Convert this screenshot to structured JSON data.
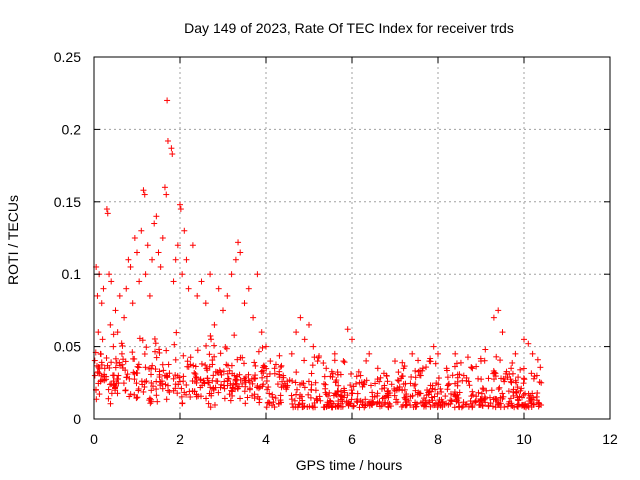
{
  "chart_data": {
    "type": "scatter",
    "title": "Day 149 of 2023, Rate Of TEC Index for receiver trds",
    "xlabel": "GPS time / hours",
    "ylabel": "ROTI / TECUs",
    "xlim": [
      0,
      12
    ],
    "ylim": [
      0,
      0.25
    ],
    "xticks": [
      0,
      2,
      4,
      6,
      8,
      10,
      12
    ],
    "xtick_labels": [
      "0",
      "2",
      "4",
      "6",
      "8",
      "10",
      "12"
    ],
    "yticks": [
      0,
      0.05,
      0.1,
      0.15,
      0.2,
      0.25
    ],
    "ytick_labels": [
      "0",
      "0.05",
      "0.1",
      "0.15",
      "0.2",
      "0.25"
    ],
    "grid": true,
    "marker": "+",
    "color": "#ff0000",
    "series": [
      {
        "name": "ROTI",
        "points": [
          [
            0.02,
            0.03
          ],
          [
            0.05,
            0.105
          ],
          [
            0.08,
            0.085
          ],
          [
            0.1,
            0.06
          ],
          [
            0.12,
            0.1
          ],
          [
            0.15,
            0.045
          ],
          [
            0.18,
            0.08
          ],
          [
            0.2,
            0.055
          ],
          [
            0.22,
            0.09
          ],
          [
            0.25,
            0.035
          ],
          [
            0.3,
            0.145
          ],
          [
            0.32,
            0.142
          ],
          [
            0.35,
            0.1
          ],
          [
            0.38,
            0.065
          ],
          [
            0.4,
            0.095
          ],
          [
            0.45,
            0.05
          ],
          [
            0.5,
            0.075
          ],
          [
            0.55,
            0.06
          ],
          [
            0.6,
            0.085
          ],
          [
            0.65,
            0.045
          ],
          [
            0.7,
            0.07
          ],
          [
            0.75,
            0.09
          ],
          [
            0.8,
            0.11
          ],
          [
            0.85,
            0.105
          ],
          [
            0.9,
            0.08
          ],
          [
            0.95,
            0.125
          ],
          [
            1.0,
            0.115
          ],
          [
            1.05,
            0.095
          ],
          [
            1.1,
            0.13
          ],
          [
            1.15,
            0.158
          ],
          [
            1.18,
            0.155
          ],
          [
            1.2,
            0.1
          ],
          [
            1.25,
            0.12
          ],
          [
            1.3,
            0.085
          ],
          [
            1.35,
            0.11
          ],
          [
            1.4,
            0.135
          ],
          [
            1.45,
            0.14
          ],
          [
            1.5,
            0.115
          ],
          [
            1.55,
            0.105
          ],
          [
            1.6,
            0.125
          ],
          [
            1.65,
            0.16
          ],
          [
            1.68,
            0.155
          ],
          [
            1.7,
            0.22
          ],
          [
            1.72,
            0.192
          ],
          [
            1.8,
            0.187
          ],
          [
            1.82,
            0.183
          ],
          [
            1.85,
            0.095
          ],
          [
            1.9,
            0.11
          ],
          [
            1.95,
            0.12
          ],
          [
            2.0,
            0.148
          ],
          [
            2.02,
            0.145
          ],
          [
            2.05,
            0.1
          ],
          [
            2.1,
            0.13
          ],
          [
            2.15,
            0.11
          ],
          [
            2.2,
            0.09
          ],
          [
            2.3,
            0.12
          ],
          [
            2.4,
            0.085
          ],
          [
            2.5,
            0.095
          ],
          [
            2.6,
            0.08
          ],
          [
            2.7,
            0.1
          ],
          [
            2.8,
            0.065
          ],
          [
            2.9,
            0.09
          ],
          [
            3.0,
            0.075
          ],
          [
            3.1,
            0.085
          ],
          [
            3.2,
            0.1
          ],
          [
            3.3,
            0.11
          ],
          [
            3.35,
            0.122
          ],
          [
            3.4,
            0.115
          ],
          [
            3.5,
            0.08
          ],
          [
            3.6,
            0.09
          ],
          [
            3.7,
            0.07
          ],
          [
            3.8,
            0.1
          ],
          [
            3.9,
            0.06
          ],
          [
            4.0,
            0.05
          ],
          [
            4.1,
            0.04
          ],
          [
            4.2,
            0.035
          ],
          [
            4.4,
            0.03
          ],
          [
            4.6,
            0.045
          ],
          [
            4.7,
            0.06
          ],
          [
            4.8,
            0.07
          ],
          [
            4.9,
            0.055
          ],
          [
            5.0,
            0.065
          ],
          [
            5.1,
            0.05
          ],
          [
            5.2,
            0.04
          ],
          [
            5.4,
            0.035
          ],
          [
            5.6,
            0.045
          ],
          [
            5.8,
            0.04
          ],
          [
            5.9,
            0.062
          ],
          [
            6.0,
            0.055
          ],
          [
            6.2,
            0.03
          ],
          [
            6.4,
            0.045
          ],
          [
            6.6,
            0.035
          ],
          [
            6.8,
            0.03
          ],
          [
            7.0,
            0.04
          ],
          [
            7.2,
            0.035
          ],
          [
            7.4,
            0.045
          ],
          [
            7.6,
            0.03
          ],
          [
            7.8,
            0.04
          ],
          [
            7.9,
            0.05
          ],
          [
            8.0,
            0.045
          ],
          [
            8.2,
            0.035
          ],
          [
            8.4,
            0.045
          ],
          [
            8.6,
            0.03
          ],
          [
            8.8,
            0.035
          ],
          [
            9.0,
            0.04
          ],
          [
            9.1,
            0.048
          ],
          [
            9.3,
            0.07
          ],
          [
            9.4,
            0.075
          ],
          [
            9.5,
            0.06
          ],
          [
            9.7,
            0.035
          ],
          [
            9.8,
            0.045
          ],
          [
            10.0,
            0.055
          ],
          [
            10.1,
            0.052
          ],
          [
            10.2,
            0.045
          ],
          [
            10.3,
            0.03
          ],
          [
            10.4,
            0.025
          ]
        ]
      }
    ]
  }
}
